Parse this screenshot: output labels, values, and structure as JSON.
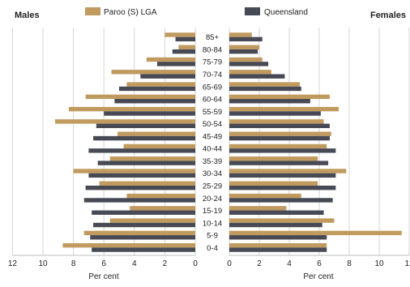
{
  "page": {
    "left_title": "Males",
    "right_title": "Females"
  },
  "legend": [
    {
      "label": "Paroo (S) LGA",
      "color": "#c19a5f"
    },
    {
      "label": "Queensland",
      "color": "#474a54"
    }
  ],
  "chart_data": {
    "type": "bar",
    "orientation": "horizontal",
    "layout": "population-pyramid",
    "categories": [
      "85+",
      "80-84",
      "75-79",
      "70-74",
      "65-69",
      "60-64",
      "55-59",
      "50-54",
      "45-49",
      "40-44",
      "35-39",
      "30-34",
      "25-29",
      "20-24",
      "15-19",
      "10-14",
      "5-9",
      "0-4"
    ],
    "males": {
      "xlabel": "Per cent",
      "xlim": [
        12,
        0
      ],
      "ticks": [
        "12",
        "10",
        "8",
        "6",
        "4",
        "2",
        "0"
      ],
      "series": [
        {
          "name": "Paroo (S) LGA",
          "color": "#c19a5f",
          "values": [
            2.0,
            1.1,
            3.2,
            5.5,
            4.5,
            7.2,
            8.3,
            9.2,
            5.1,
            4.7,
            5.6,
            8.0,
            6.3,
            4.5,
            4.3,
            5.6,
            7.3,
            8.7
          ]
        },
        {
          "name": "Queensland",
          "color": "#474a54",
          "values": [
            1.3,
            1.5,
            2.5,
            3.6,
            5.0,
            5.3,
            6.0,
            6.5,
            6.7,
            7.0,
            6.4,
            7.0,
            7.2,
            7.3,
            6.8,
            6.7,
            6.9,
            6.8
          ]
        }
      ]
    },
    "females": {
      "xlabel": "Per cent",
      "xlim": [
        0,
        12
      ],
      "ticks": [
        "0",
        "2",
        "4",
        "6",
        "8",
        "10",
        "12"
      ],
      "series": [
        {
          "name": "Paroo (S) LGA",
          "color": "#c19a5f",
          "values": [
            1.5,
            2.0,
            2.2,
            2.8,
            4.7,
            6.7,
            7.3,
            6.3,
            6.8,
            6.5,
            5.9,
            7.8,
            5.9,
            4.8,
            3.8,
            7.0,
            11.5,
            6.5
          ]
        },
        {
          "name": "Queensland",
          "color": "#474a54",
          "values": [
            2.2,
            1.9,
            2.6,
            3.7,
            4.8,
            5.4,
            6.1,
            6.7,
            6.7,
            7.1,
            6.6,
            7.1,
            7.1,
            6.9,
            6.3,
            6.2,
            6.5,
            6.5
          ]
        }
      ]
    },
    "grid": true,
    "legend_position": "top"
  }
}
